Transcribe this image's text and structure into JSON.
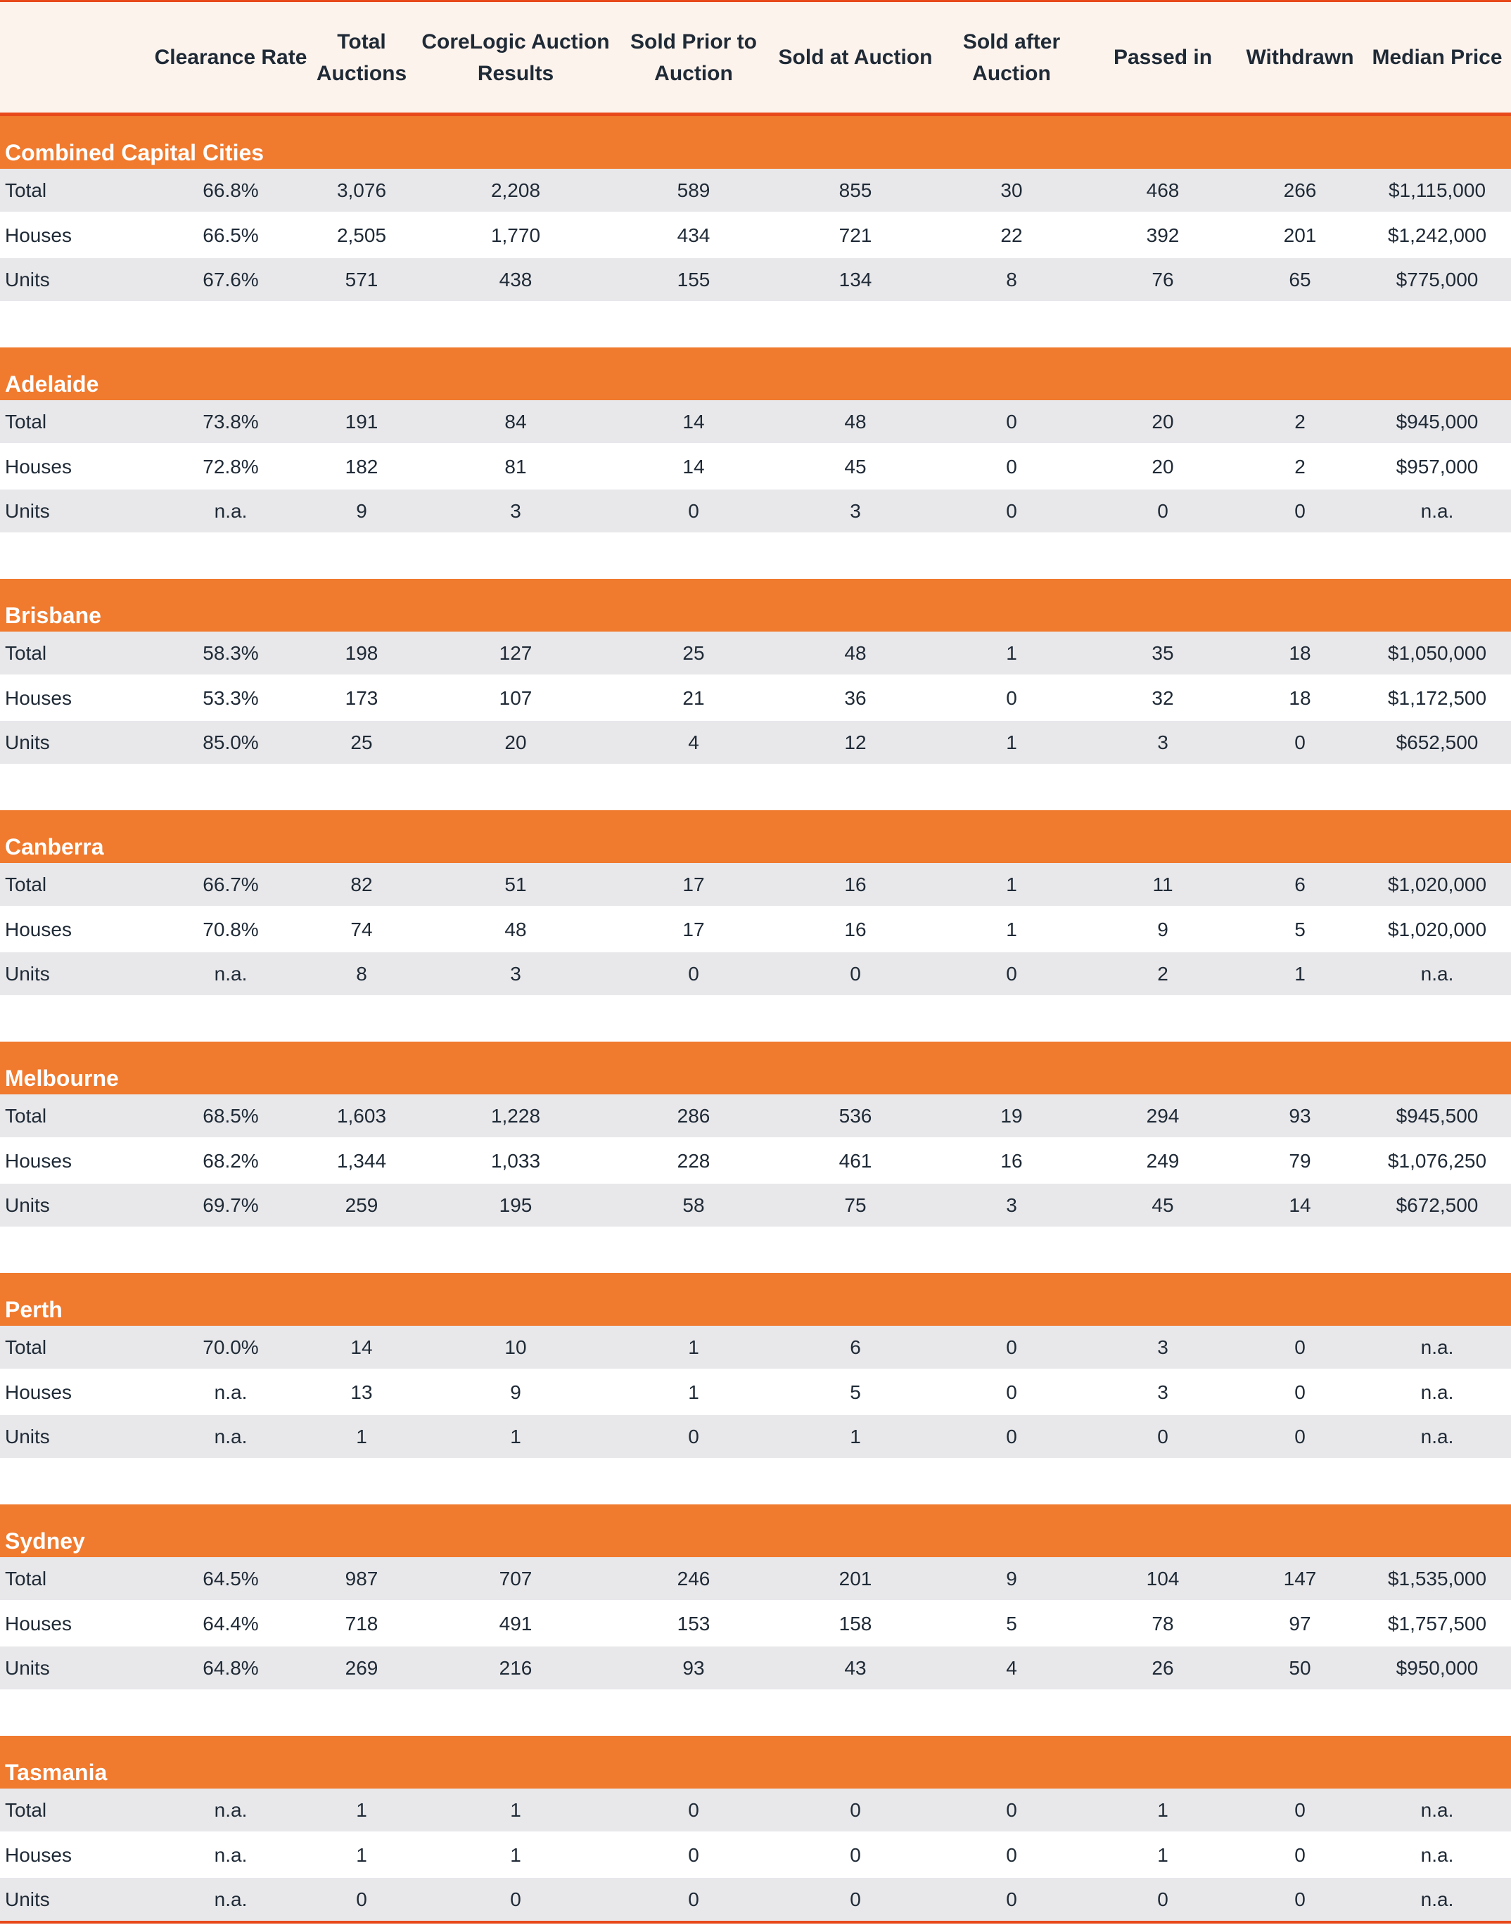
{
  "columns": [
    "",
    "Clearance Rate",
    "Total\nAuctions",
    "CoreLogic Auction\nResults",
    "Sold Prior to\nAuction",
    "Sold at Auction",
    "Sold after\nAuction",
    "Passed in",
    "Withdrawn",
    "Median Price"
  ],
  "sections": [
    {
      "title": "Combined Capital Cities",
      "rows": [
        [
          "Total",
          "66.8%",
          "3,076",
          "2,208",
          "589",
          "855",
          "30",
          "468",
          "266",
          "$1,115,000"
        ],
        [
          "Houses",
          "66.5%",
          "2,505",
          "1,770",
          "434",
          "721",
          "22",
          "392",
          "201",
          "$1,242,000"
        ],
        [
          "Units",
          "67.6%",
          "571",
          "438",
          "155",
          "134",
          "8",
          "76",
          "65",
          "$775,000"
        ]
      ]
    },
    {
      "title": "Adelaide",
      "rows": [
        [
          "Total",
          "73.8%",
          "191",
          "84",
          "14",
          "48",
          "0",
          "20",
          "2",
          "$945,000"
        ],
        [
          "Houses",
          "72.8%",
          "182",
          "81",
          "14",
          "45",
          "0",
          "20",
          "2",
          "$957,000"
        ],
        [
          "Units",
          "n.a.",
          "9",
          "3",
          "0",
          "3",
          "0",
          "0",
          "0",
          "n.a."
        ]
      ]
    },
    {
      "title": "Brisbane",
      "rows": [
        [
          "Total",
          "58.3%",
          "198",
          "127",
          "25",
          "48",
          "1",
          "35",
          "18",
          "$1,050,000"
        ],
        [
          "Houses",
          "53.3%",
          "173",
          "107",
          "21",
          "36",
          "0",
          "32",
          "18",
          "$1,172,500"
        ],
        [
          "Units",
          "85.0%",
          "25",
          "20",
          "4",
          "12",
          "1",
          "3",
          "0",
          "$652,500"
        ]
      ]
    },
    {
      "title": "Canberra",
      "rows": [
        [
          "Total",
          "66.7%",
          "82",
          "51",
          "17",
          "16",
          "1",
          "11",
          "6",
          "$1,020,000"
        ],
        [
          "Houses",
          "70.8%",
          "74",
          "48",
          "17",
          "16",
          "1",
          "9",
          "5",
          "$1,020,000"
        ],
        [
          "Units",
          "n.a.",
          "8",
          "3",
          "0",
          "0",
          "0",
          "2",
          "1",
          "n.a."
        ]
      ]
    },
    {
      "title": "Melbourne",
      "rows": [
        [
          "Total",
          "68.5%",
          "1,603",
          "1,228",
          "286",
          "536",
          "19",
          "294",
          "93",
          "$945,500"
        ],
        [
          "Houses",
          "68.2%",
          "1,344",
          "1,033",
          "228",
          "461",
          "16",
          "249",
          "79",
          "$1,076,250"
        ],
        [
          "Units",
          "69.7%",
          "259",
          "195",
          "58",
          "75",
          "3",
          "45",
          "14",
          "$672,500"
        ]
      ]
    },
    {
      "title": "Perth",
      "rows": [
        [
          "Total",
          "70.0%",
          "14",
          "10",
          "1",
          "6",
          "0",
          "3",
          "0",
          "n.a."
        ],
        [
          "Houses",
          "n.a.",
          "13",
          "9",
          "1",
          "5",
          "0",
          "3",
          "0",
          "n.a."
        ],
        [
          "Units",
          "n.a.",
          "1",
          "1",
          "0",
          "1",
          "0",
          "0",
          "0",
          "n.a."
        ]
      ]
    },
    {
      "title": "Sydney",
      "rows": [
        [
          "Total",
          "64.5%",
          "987",
          "707",
          "246",
          "201",
          "9",
          "104",
          "147",
          "$1,535,000"
        ],
        [
          "Houses",
          "64.4%",
          "718",
          "491",
          "153",
          "158",
          "5",
          "78",
          "97",
          "$1,757,500"
        ],
        [
          "Units",
          "64.8%",
          "269",
          "216",
          "93",
          "43",
          "4",
          "26",
          "50",
          "$950,000"
        ]
      ]
    },
    {
      "title": "Tasmania",
      "rows": [
        [
          "Total",
          "n.a.",
          "1",
          "1",
          "0",
          "0",
          "0",
          "1",
          "0",
          "n.a."
        ],
        [
          "Houses",
          "n.a.",
          "1",
          "1",
          "0",
          "0",
          "0",
          "1",
          "0",
          "n.a."
        ],
        [
          "Units",
          "n.a.",
          "0",
          "0",
          "0",
          "0",
          "0",
          "0",
          "0",
          "n.a."
        ]
      ]
    }
  ],
  "colors": {
    "accent": "#e8491b",
    "section_bar": "#f07a2e",
    "header_bg": "#fdf3ed",
    "row_shade": "#e8e8eb",
    "text": "#1f2a36"
  }
}
